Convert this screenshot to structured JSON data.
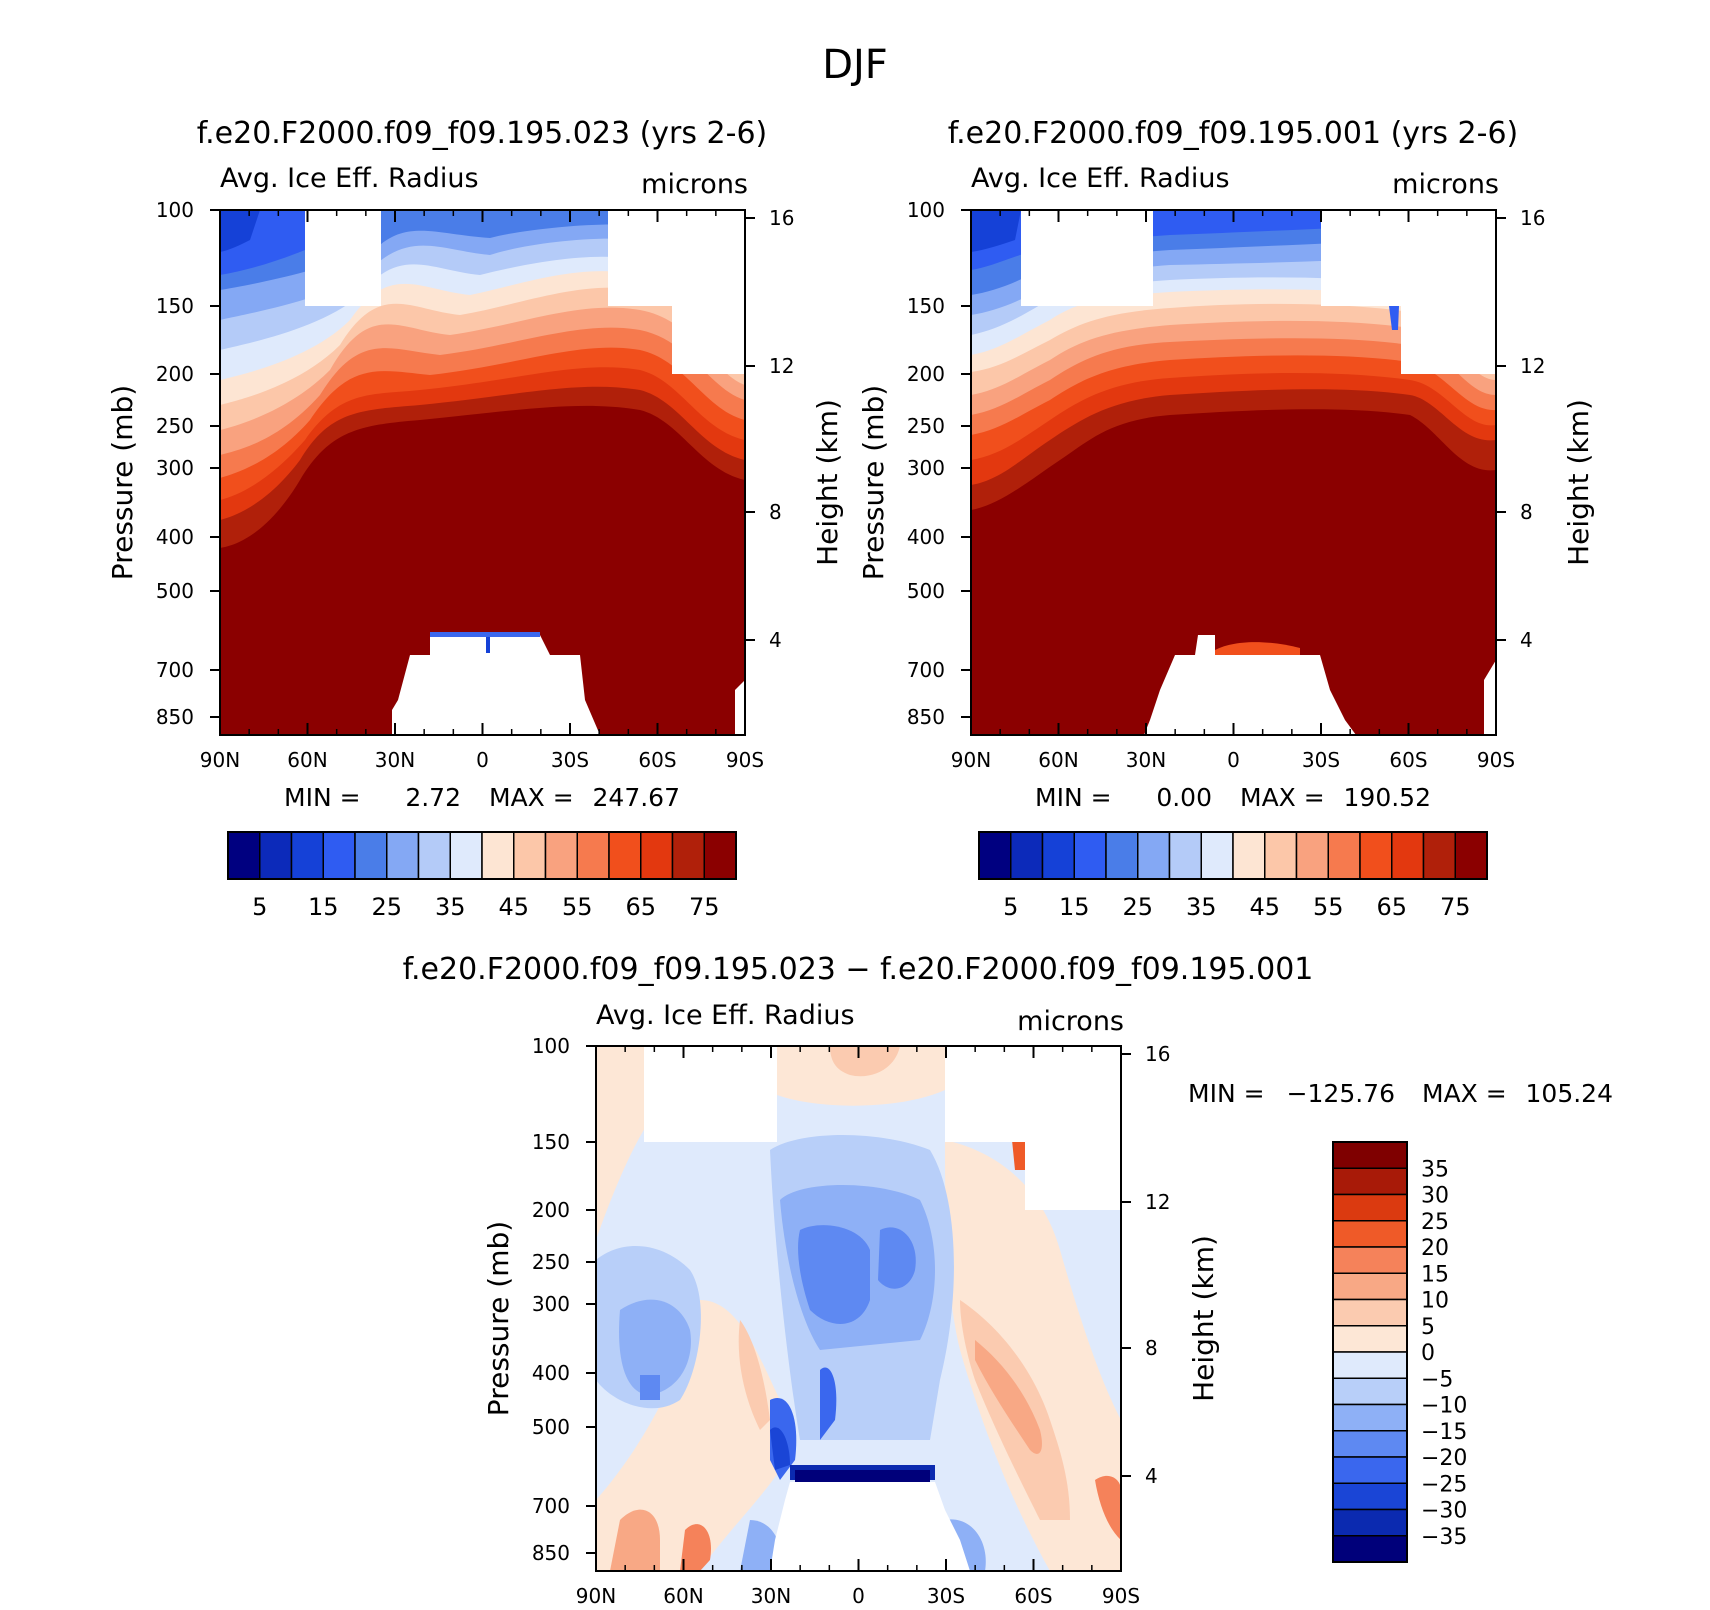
{
  "figure": {
    "title": "DJF"
  },
  "palette": {
    "full": [
      "#000080",
      "#0c2aba",
      "#1541d7",
      "#2f5cf2",
      "#4a7de8",
      "#84a8f4",
      "#b4cbf8",
      "#dfeafc",
      "#fde5d3",
      "#fcc7a9",
      "#f9a27f",
      "#f67a4e",
      "#f14f1c",
      "#e3380f",
      "#b0200a",
      "#8b0000"
    ],
    "diff": [
      "#00007a",
      "#0b2ab0",
      "#1a45d6",
      "#3a67ee",
      "#5e89f2",
      "#8eb0f6",
      "#b8cff9",
      "#dfeafc",
      "#fde7d6",
      "#fbcbb0",
      "#f8a885",
      "#f5825a",
      "#ef5a28",
      "#db3a10",
      "#a81a08",
      "#7f0000"
    ],
    "missing": "#ffffff"
  },
  "chart_data": [
    {
      "id": "panel-023",
      "type": "heatmap",
      "title": "f.e20.F2000.f09_f09.195.023 (yrs 2-6)",
      "left_string": "Avg. Ice Eff. Radius",
      "right_string": "microns",
      "ylabel": "Pressure (mb)",
      "ylabel_right": "Height (km)",
      "x_ticks": [
        "90N",
        "60N",
        "30N",
        "0",
        "30S",
        "60S",
        "90S"
      ],
      "y_ticks": [
        "100",
        "150",
        "200",
        "250",
        "300",
        "400",
        "500",
        "700",
        "850"
      ],
      "height_ticks": [
        "16",
        "12",
        "8",
        "4"
      ],
      "stats": {
        "min_label": "MIN =",
        "min": "2.72",
        "max_label": "MAX =",
        "max": "247.67"
      },
      "colorbar": {
        "orientation": "horizontal",
        "levels": [
          0,
          5,
          10,
          15,
          20,
          25,
          30,
          35,
          40,
          45,
          50,
          55,
          60,
          65,
          70,
          75
        ],
        "labels": [
          "5",
          "15",
          "25",
          "35",
          "45",
          "55",
          "65",
          "75"
        ]
      }
    },
    {
      "id": "panel-001",
      "type": "heatmap",
      "title": "f.e20.F2000.f09_f09.195.001 (yrs 2-6)",
      "left_string": "Avg. Ice Eff. Radius",
      "right_string": "microns",
      "ylabel": "Pressure (mb)",
      "ylabel_right": "Height (km)",
      "x_ticks": [
        "90N",
        "60N",
        "30N",
        "0",
        "30S",
        "60S",
        "90S"
      ],
      "y_ticks": [
        "100",
        "150",
        "200",
        "250",
        "300",
        "400",
        "500",
        "700",
        "850"
      ],
      "height_ticks": [
        "16",
        "12",
        "8",
        "4"
      ],
      "stats": {
        "min_label": "MIN =",
        "min": "0.00",
        "max_label": "MAX =",
        "max": "190.52"
      },
      "colorbar": {
        "orientation": "horizontal",
        "levels": [
          0,
          5,
          10,
          15,
          20,
          25,
          30,
          35,
          40,
          45,
          50,
          55,
          60,
          65,
          70,
          75
        ],
        "labels": [
          "5",
          "15",
          "25",
          "35",
          "45",
          "55",
          "65",
          "75"
        ]
      }
    },
    {
      "id": "panel-diff",
      "type": "heatmap",
      "title": "f.e20.F2000.f09_f09.195.023 − f.e20.F2000.f09_f09.195.001",
      "left_string": "Avg. Ice Eff. Radius",
      "right_string": "microns",
      "ylabel": "Pressure (mb)",
      "ylabel_right": "Height (km)",
      "x_ticks": [
        "90N",
        "60N",
        "30N",
        "0",
        "30S",
        "60S",
        "90S"
      ],
      "y_ticks": [
        "100",
        "150",
        "200",
        "250",
        "300",
        "400",
        "500",
        "700",
        "850"
      ],
      "height_ticks": [
        "16",
        "12",
        "8",
        "4"
      ],
      "stats": {
        "min_label": "MIN =",
        "min": "−125.76",
        "max_label": "MAX =",
        "max": "105.24"
      },
      "colorbar": {
        "orientation": "vertical",
        "levels": [
          -35,
          -30,
          -25,
          -20,
          -15,
          -10,
          -5,
          0,
          5,
          10,
          15,
          20,
          25,
          30,
          35
        ],
        "labels": [
          "35",
          "30",
          "25",
          "20",
          "15",
          "10",
          "5",
          "0",
          "−5",
          "−10",
          "−15",
          "−20",
          "−25",
          "−30",
          "−35"
        ]
      }
    }
  ]
}
